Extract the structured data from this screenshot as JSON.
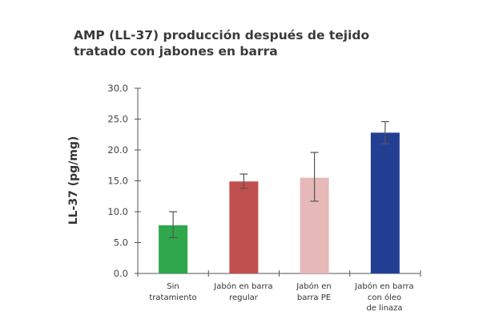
{
  "chart_data": {
    "type": "bar",
    "title": "AMP (LL-37) producción después de tejido\ntratado con jabones en barra",
    "xlabel": "",
    "ylabel": "LL-37 (pg/mg)",
    "ylim": [
      0,
      30
    ],
    "yticks": [
      "0.0",
      "5.0",
      "10.0",
      "15.0",
      "20.0",
      "25.0",
      "30.0"
    ],
    "grid": false,
    "categories": [
      "Sin\ntratamiento",
      "Jabón en barra\nregular",
      "Jabón en\nbarra PE",
      "Jabón en barra\ncon óleo\nde linaza"
    ],
    "values": [
      7.8,
      14.9,
      15.5,
      22.8
    ],
    "error_low": [
      5.8,
      13.8,
      11.7,
      21.0
    ],
    "error_high": [
      10.0,
      16.1,
      19.6,
      24.6
    ],
    "colors": [
      "#2ea84a",
      "#c0504d",
      "#e6b8b7",
      "#223f93"
    ]
  }
}
